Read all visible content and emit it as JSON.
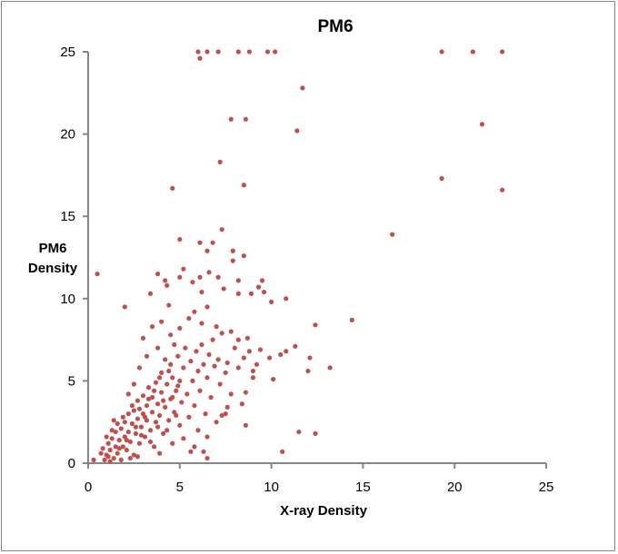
{
  "chart_data": {
    "type": "scatter",
    "title": "PM6",
    "xlabel": "X-ray Density",
    "ylabel_lines": [
      "PM6",
      "Density"
    ],
    "xlim": [
      0,
      25
    ],
    "ylim": [
      0,
      25
    ],
    "xticks": [
      0,
      5,
      10,
      15,
      20,
      25
    ],
    "yticks": [
      0,
      5,
      10,
      15,
      20,
      25
    ],
    "grid": false,
    "legend": "none",
    "marker_color": "#C0504D",
    "points": [
      [
        6.0,
        25
      ],
      [
        6.5,
        25
      ],
      [
        7.1,
        25
      ],
      [
        8.2,
        25
      ],
      [
        8.8,
        25
      ],
      [
        9.8,
        25
      ],
      [
        10.2,
        25
      ],
      [
        19.3,
        25
      ],
      [
        21.0,
        25
      ],
      [
        22.6,
        25
      ],
      [
        6.1,
        24.6
      ],
      [
        11.7,
        22.8
      ],
      [
        7.8,
        20.9
      ],
      [
        8.6,
        20.9
      ],
      [
        11.4,
        20.2
      ],
      [
        21.5,
        20.6
      ],
      [
        7.2,
        18.3
      ],
      [
        19.3,
        17.3
      ],
      [
        8.5,
        16.9
      ],
      [
        22.6,
        16.6
      ],
      [
        4.6,
        16.7
      ],
      [
        16.6,
        13.9
      ],
      [
        7.3,
        14.2
      ],
      [
        5.0,
        13.6
      ],
      [
        6.8,
        13.4
      ],
      [
        6.1,
        13.4
      ],
      [
        6.5,
        12.9
      ],
      [
        7.9,
        12.9
      ],
      [
        7.9,
        12.3
      ],
      [
        8.5,
        12.6
      ],
      [
        0.5,
        11.5
      ],
      [
        2.0,
        9.5
      ],
      [
        3.8,
        11.5
      ],
      [
        5.2,
        11.8
      ],
      [
        6.6,
        11.6
      ],
      [
        7.1,
        11.3
      ],
      [
        8.2,
        11.1
      ],
      [
        9.5,
        11.1
      ],
      [
        9.3,
        10.7
      ],
      [
        9.6,
        10.4
      ],
      [
        10.8,
        10.0
      ],
      [
        10.0,
        9.8
      ],
      [
        3.4,
        10.3
      ],
      [
        4.2,
        11.1
      ],
      [
        4.3,
        10.8
      ],
      [
        5.0,
        11.3
      ],
      [
        5.7,
        11.0
      ],
      [
        6.1,
        11.3
      ],
      [
        6.2,
        10.4
      ],
      [
        7.4,
        10.6
      ],
      [
        8.2,
        10.3
      ],
      [
        8.9,
        10.3
      ],
      [
        12.4,
        8.4
      ],
      [
        14.4,
        8.7
      ],
      [
        11.3,
        7.1
      ],
      [
        10.8,
        6.8
      ],
      [
        10.5,
        6.6
      ],
      [
        9.9,
        6.4
      ],
      [
        9.4,
        6.9
      ],
      [
        12.1,
        6.4
      ],
      [
        13.2,
        5.8
      ],
      [
        12.0,
        5.6
      ],
      [
        10.1,
        5.1
      ],
      [
        9.0,
        5.6
      ],
      [
        8.6,
        4.3
      ],
      [
        7.6,
        3.4
      ],
      [
        7.3,
        2.9
      ],
      [
        8.6,
        2.3
      ],
      [
        11.5,
        1.9
      ],
      [
        12.4,
        1.8
      ],
      [
        10.6,
        0.7
      ],
      [
        6.5,
        0.3
      ],
      [
        6.3,
        0.7
      ],
      [
        5.6,
        0.7
      ],
      [
        0.3,
        0.2
      ],
      [
        1.0,
        0.5
      ],
      [
        1.1,
        1.2
      ],
      [
        1.2,
        0.8
      ],
      [
        1.3,
        1.5
      ],
      [
        1.4,
        0.3
      ],
      [
        1.5,
        1.0
      ],
      [
        1.5,
        1.9
      ],
      [
        1.6,
        0.6
      ],
      [
        1.7,
        1.4
      ],
      [
        1.8,
        2.1
      ],
      [
        1.8,
        0.2
      ],
      [
        1.9,
        1.0
      ],
      [
        2.0,
        1.6
      ],
      [
        2.0,
        2.5
      ],
      [
        2.1,
        0.8
      ],
      [
        2.2,
        1.9
      ],
      [
        2.2,
        3.0
      ],
      [
        2.3,
        1.3
      ],
      [
        2.4,
        2.4
      ],
      [
        2.5,
        0.5
      ],
      [
        2.5,
        3.2
      ],
      [
        2.6,
        1.8
      ],
      [
        2.7,
        2.7
      ],
      [
        2.7,
        3.8
      ],
      [
        2.8,
        1.2
      ],
      [
        2.9,
        2.2
      ],
      [
        3.0,
        3.0
      ],
      [
        3.0,
        4.1
      ],
      [
        3.1,
        1.6
      ],
      [
        3.2,
        2.6
      ],
      [
        3.2,
        3.5
      ],
      [
        3.3,
        4.6
      ],
      [
        3.4,
        2.0
      ],
      [
        3.5,
        3.1
      ],
      [
        3.5,
        4.0
      ],
      [
        3.6,
        1.0
      ],
      [
        3.7,
        2.5
      ],
      [
        3.7,
        4.9
      ],
      [
        3.8,
        3.6
      ],
      [
        3.9,
        2.9
      ],
      [
        4.0,
        4.3
      ],
      [
        4.0,
        5.5
      ],
      [
        4.1,
        1.8
      ],
      [
        4.2,
        3.4
      ],
      [
        4.3,
        4.8
      ],
      [
        4.4,
        2.6
      ],
      [
        4.5,
        3.9
      ],
      [
        4.5,
        6.0
      ],
      [
        4.6,
        5.2
      ],
      [
        4.7,
        3.1
      ],
      [
        4.8,
        4.4
      ],
      [
        4.9,
        6.5
      ],
      [
        5.0,
        2.3
      ],
      [
        5.0,
        5.0
      ],
      [
        5.1,
        3.7
      ],
      [
        5.2,
        5.8
      ],
      [
        5.3,
        7.0
      ],
      [
        5.4,
        4.2
      ],
      [
        5.5,
        2.8
      ],
      [
        5.6,
        6.2
      ],
      [
        5.7,
        5.0
      ],
      [
        5.8,
        3.5
      ],
      [
        5.9,
        6.8
      ],
      [
        6.0,
        5.6
      ],
      [
        6.1,
        4.4
      ],
      [
        6.2,
        7.2
      ],
      [
        6.3,
        6.0
      ],
      [
        6.4,
        3.0
      ],
      [
        6.5,
        5.2
      ],
      [
        6.6,
        6.6
      ],
      [
        6.7,
        4.0
      ],
      [
        6.8,
        7.5
      ],
      [
        6.9,
        5.9
      ],
      [
        7.0,
        2.5
      ],
      [
        7.1,
        6.3
      ],
      [
        7.2,
        4.8
      ],
      [
        7.3,
        7.9
      ],
      [
        7.5,
        5.5
      ],
      [
        7.6,
        6.1
      ],
      [
        7.8,
        4.2
      ],
      [
        8.0,
        7.0
      ],
      [
        8.2,
        5.8
      ],
      [
        8.4,
        3.6
      ],
      [
        8.5,
        6.4
      ],
      [
        8.7,
        7.6
      ],
      [
        9.0,
        5.2
      ],
      [
        9.2,
        6.0
      ],
      [
        0.8,
        0.9
      ],
      [
        0.9,
        0.2
      ],
      [
        1.0,
        1.6
      ],
      [
        1.2,
        0.1
      ],
      [
        1.3,
        2.0
      ],
      [
        1.6,
        2.4
      ],
      [
        1.7,
        0.9
      ],
      [
        1.9,
        2.8
      ],
      [
        2.1,
        1.4
      ],
      [
        2.3,
        0.3
      ],
      [
        2.4,
        3.5
      ],
      [
        2.6,
        2.2
      ],
      [
        2.8,
        3.3
      ],
      [
        2.9,
        1.7
      ],
      [
        3.1,
        2.8
      ],
      [
        3.3,
        3.9
      ],
      [
        3.4,
        1.3
      ],
      [
        3.6,
        4.4
      ],
      [
        3.8,
        2.2
      ],
      [
        3.9,
        5.2
      ],
      [
        4.1,
        3.8
      ],
      [
        4.2,
        6.3
      ],
      [
        4.3,
        2.0
      ],
      [
        4.4,
        5.6
      ],
      [
        4.6,
        4.0
      ],
      [
        4.7,
        7.2
      ],
      [
        4.8,
        2.9
      ],
      [
        4.9,
        4.7
      ],
      [
        3.0,
        7.6
      ],
      [
        3.5,
        8.3
      ],
      [
        4.0,
        8.6
      ],
      [
        4.5,
        7.8
      ],
      [
        5.0,
        8.2
      ],
      [
        5.5,
        8.8
      ],
      [
        3.2,
        6.5
      ],
      [
        3.8,
        7.0
      ],
      [
        2.5,
        4.8
      ],
      [
        2.8,
        5.8
      ],
      [
        5.2,
        1.5
      ],
      [
        5.8,
        1.0
      ],
      [
        4.6,
        1.2
      ],
      [
        3.9,
        0.6
      ],
      [
        2.7,
        0.4
      ],
      [
        6.0,
        2.0
      ],
      [
        6.5,
        1.6
      ],
      [
        7.5,
        3.0
      ],
      [
        7.0,
        8.3
      ],
      [
        6.2,
        8.5
      ],
      [
        5.8,
        9.2
      ],
      [
        4.4,
        9.6
      ],
      [
        6.5,
        9.5
      ],
      [
        7.8,
        8.0
      ],
      [
        8.2,
        7.5
      ],
      [
        8.8,
        6.8
      ],
      [
        2.2,
        4.2
      ],
      [
        1.4,
        2.6
      ],
      [
        0.7,
        0.6
      ],
      [
        1.1,
        0.4
      ]
    ]
  }
}
